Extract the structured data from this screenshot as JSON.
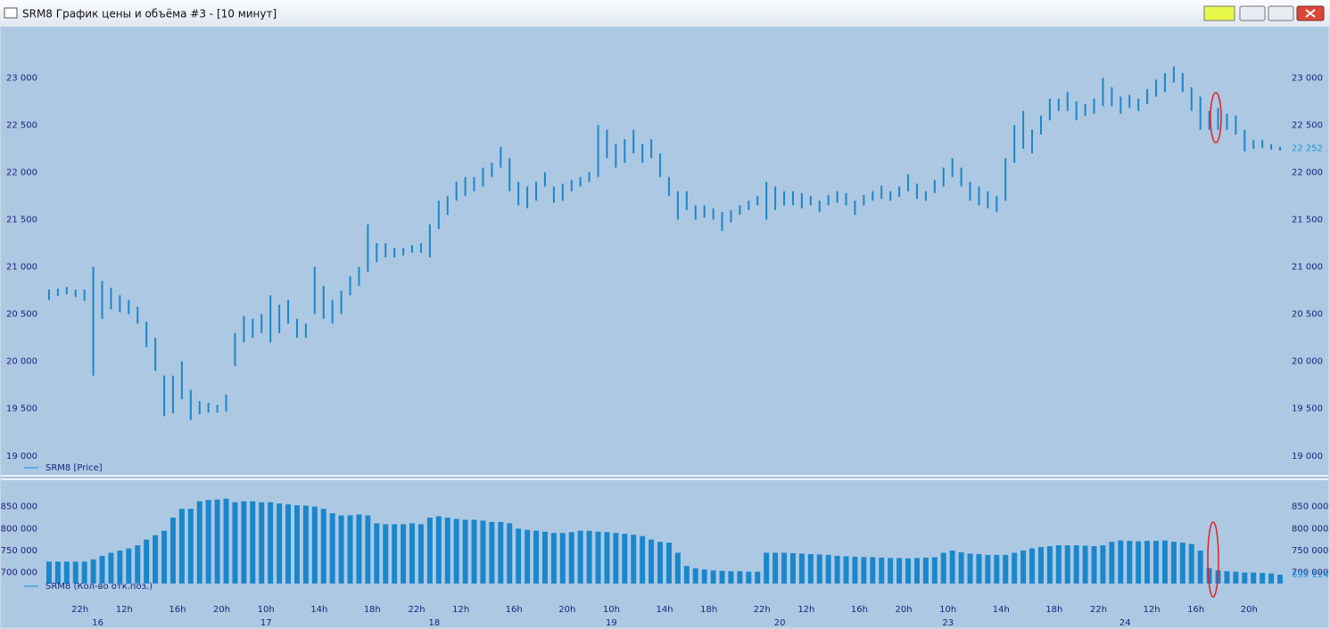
{
  "window": {
    "title": "SRM8 График цены и объёма #3 - [10 минут]"
  },
  "chart_data": [
    {
      "type": "range-bar",
      "xlim": [
        0,
        140
      ],
      "ylim": [
        18800,
        23540
      ],
      "yticks": [
        {
          "value": 19000,
          "label": "19 000"
        },
        {
          "value": 19500,
          "label": "19 500"
        },
        {
          "value": 20000,
          "label": "20 000"
        },
        {
          "value": 20500,
          "label": "20 500"
        },
        {
          "value": 21000,
          "label": "21 000"
        },
        {
          "value": 21500,
          "label": "21 500"
        },
        {
          "value": 22000,
          "label": "22 000"
        },
        {
          "value": 22500,
          "label": "22 500"
        },
        {
          "value": 23000,
          "label": "23 000"
        }
      ],
      "current": {
        "value": 22252,
        "label": "22 252"
      },
      "series": [
        {
          "name": "SRM8 [Price]",
          "color": "#1a87cc",
          "low": [
            20650,
            20690,
            20710,
            20680,
            20640,
            19850,
            20450,
            20550,
            20520,
            20500,
            20400,
            20150,
            19900,
            19420,
            19450,
            19600,
            19380,
            19440,
            19460,
            19460,
            19470,
            19950,
            20200,
            20250,
            20300,
            20200,
            20300,
            20400,
            20250,
            20250,
            20500,
            20450,
            20400,
            20500,
            20700,
            20800,
            20950,
            21050,
            21100,
            21100,
            21120,
            21150,
            21150,
            21100,
            21400,
            21550,
            21700,
            21750,
            21800,
            21850,
            21950,
            22050,
            21800,
            21650,
            21620,
            21700,
            21850,
            21680,
            21700,
            21800,
            21850,
            21900,
            21950,
            22150,
            22050,
            22100,
            22200,
            22100,
            22150,
            21950,
            21750,
            21500,
            21600,
            21500,
            21520,
            21500,
            21380,
            21470,
            21550,
            21600,
            21650,
            21500,
            21600,
            21650,
            21650,
            21620,
            21650,
            21580,
            21650,
            21680,
            21650,
            21550,
            21650,
            21700,
            21720,
            21700,
            21740,
            21800,
            21720,
            21700,
            21780,
            21850,
            21950,
            21850,
            21700,
            21650,
            21620,
            21580,
            21700,
            22100,
            22250,
            22200,
            22400,
            22550,
            22650,
            22650,
            22550,
            22600,
            22620,
            22700,
            22700,
            22620,
            22680,
            22650,
            22720,
            22800,
            22850,
            22950,
            22850,
            22650,
            22450,
            22450,
            22450,
            22450,
            22400,
            22220,
            22250,
            22260,
            22240,
            22230
          ],
          "high": [
            20760,
            20770,
            20790,
            20760,
            20760,
            21000,
            20850,
            20780,
            20700,
            20650,
            20580,
            20420,
            20250,
            19850,
            19850,
            20000,
            19700,
            19580,
            19560,
            19540,
            19650,
            20300,
            20480,
            20450,
            20500,
            20700,
            20600,
            20650,
            20450,
            20400,
            21000,
            20800,
            20650,
            20750,
            20900,
            21000,
            21450,
            21250,
            21250,
            21200,
            21200,
            21230,
            21250,
            21450,
            21700,
            21750,
            21900,
            21950,
            21950,
            22050,
            22100,
            22270,
            22150,
            21900,
            21850,
            21900,
            22000,
            21850,
            21880,
            21920,
            21950,
            22000,
            22500,
            22450,
            22300,
            22350,
            22450,
            22300,
            22350,
            22200,
            21950,
            21800,
            21800,
            21650,
            21650,
            21620,
            21580,
            21600,
            21650,
            21700,
            21750,
            21900,
            21850,
            21800,
            21800,
            21780,
            21750,
            21700,
            21760,
            21800,
            21780,
            21700,
            21760,
            21800,
            21860,
            21800,
            21850,
            21980,
            21880,
            21800,
            21920,
            22050,
            22150,
            22050,
            21900,
            21850,
            21800,
            21750,
            22150,
            22500,
            22650,
            22450,
            22600,
            22780,
            22780,
            22850,
            22750,
            22720,
            22780,
            23000,
            22900,
            22800,
            22820,
            22780,
            22880,
            22980,
            23050,
            23120,
            23050,
            22900,
            22800,
            22650,
            22680,
            22620,
            22600,
            22450,
            22340,
            22340,
            22300,
            22270
          ]
        }
      ]
    },
    {
      "type": "bar",
      "xlim": [
        0,
        140
      ],
      "ylim": [
        675000,
        912000
      ],
      "yticks": [
        {
          "value": 700000,
          "label": "700 000"
        },
        {
          "value": 750000,
          "label": "750 000"
        },
        {
          "value": 800000,
          "label": "800 000"
        },
        {
          "value": 850000,
          "label": "850 000"
        }
      ],
      "current": {
        "value": 695114,
        "label": "695 114"
      },
      "xticks": [
        {
          "value": 4,
          "label": "22h"
        },
        {
          "value": 9,
          "label": "12h"
        },
        {
          "value": 15,
          "label": "16h"
        },
        {
          "value": 20,
          "label": "20h"
        },
        {
          "value": 25,
          "label": "10h"
        },
        {
          "value": 31,
          "label": "14h"
        },
        {
          "value": 37,
          "label": "18h"
        },
        {
          "value": 42,
          "label": "22h"
        },
        {
          "value": 47,
          "label": "12h"
        },
        {
          "value": 53,
          "label": "16h"
        },
        {
          "value": 59,
          "label": "20h"
        },
        {
          "value": 64,
          "label": "10h"
        },
        {
          "value": 70,
          "label": "14h"
        },
        {
          "value": 75,
          "label": "18h"
        },
        {
          "value": 81,
          "label": "22h"
        },
        {
          "value": 86,
          "label": "12h"
        },
        {
          "value": 92,
          "label": "16h"
        },
        {
          "value": 97,
          "label": "20h"
        },
        {
          "value": 102,
          "label": "10h"
        },
        {
          "value": 108,
          "label": "14h"
        },
        {
          "value": 114,
          "label": "18h"
        },
        {
          "value": 119,
          "label": "22h"
        },
        {
          "value": 125,
          "label": "12h"
        },
        {
          "value": 130,
          "label": "16h"
        },
        {
          "value": 136,
          "label": "20h"
        }
      ],
      "x_day_ticks": [
        {
          "value": 6,
          "label": "16"
        },
        {
          "value": 25,
          "label": "17"
        },
        {
          "value": 44,
          "label": "18"
        },
        {
          "value": 64,
          "label": "19"
        },
        {
          "value": 83,
          "label": "20"
        },
        {
          "value": 102,
          "label": "23"
        },
        {
          "value": 122,
          "label": "24"
        }
      ],
      "series": [
        {
          "name": "SRM8 (Кол-во отк.поз.)",
          "color": "#1a87cc",
          "values": [
            725000,
            725000,
            725000,
            725000,
            725000,
            730000,
            738000,
            745000,
            750000,
            755000,
            762000,
            775000,
            785000,
            795000,
            825000,
            845000,
            845000,
            862000,
            865000,
            866000,
            868000,
            860000,
            862000,
            862000,
            860000,
            860000,
            857000,
            855000,
            853000,
            852000,
            850000,
            845000,
            835000,
            830000,
            830000,
            832000,
            830000,
            812000,
            810000,
            810000,
            810000,
            812000,
            810000,
            825000,
            828000,
            825000,
            822000,
            820000,
            820000,
            818000,
            815000,
            815000,
            812000,
            800000,
            797000,
            795000,
            793000,
            790000,
            790000,
            792000,
            795000,
            795000,
            793000,
            792000,
            790000,
            788000,
            786000,
            783000,
            775000,
            770000,
            768000,
            745000,
            715000,
            710000,
            707000,
            705000,
            704000,
            703000,
            703000,
            702000,
            702000,
            745000,
            745000,
            745000,
            744000,
            743000,
            742000,
            741000,
            740000,
            738000,
            737000,
            736000,
            735000,
            735000,
            734000,
            733000,
            733000,
            732000,
            733000,
            734000,
            735000,
            745000,
            750000,
            746000,
            743000,
            742000,
            740000,
            740000,
            740000,
            745000,
            750000,
            755000,
            758000,
            760000,
            762000,
            762000,
            762000,
            761000,
            760000,
            762000,
            770000,
            773000,
            772000,
            771000,
            772000,
            772000,
            773000,
            770000,
            768000,
            765000,
            750000,
            710000,
            705000,
            703000,
            702000,
            700000,
            700000,
            699000,
            698000,
            695114
          ]
        }
      ]
    }
  ]
}
